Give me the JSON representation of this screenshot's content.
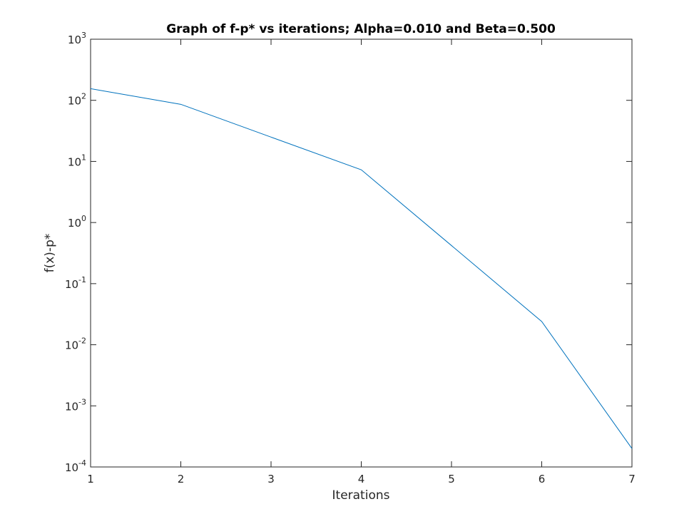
{
  "chart_data": {
    "type": "line",
    "title": "Graph of f-p* vs iterations; Alpha=0.010 and Beta=0.500",
    "xlabel": "Iterations",
    "ylabel": "f(x)-p*",
    "xlim": [
      1,
      7
    ],
    "ylim": [
      0.0001,
      1000
    ],
    "yscale": "log",
    "grid": false,
    "legend": "none",
    "x_ticks": [
      1,
      2,
      3,
      4,
      5,
      6,
      7
    ],
    "y_ticks": [
      {
        "value": 0.0001,
        "base": "10",
        "exp": "-4"
      },
      {
        "value": 0.001,
        "base": "10",
        "exp": "-3"
      },
      {
        "value": 0.01,
        "base": "10",
        "exp": "-2"
      },
      {
        "value": 0.1,
        "base": "10",
        "exp": "-1"
      },
      {
        "value": 1,
        "base": "10",
        "exp": "0"
      },
      {
        "value": 10,
        "base": "10",
        "exp": "1"
      },
      {
        "value": 100,
        "base": "10",
        "exp": "2"
      },
      {
        "value": 1000,
        "base": "10",
        "exp": "3"
      }
    ],
    "series": [
      {
        "color": "#0072bd",
        "x": [
          1,
          2,
          3,
          4,
          5,
          6,
          7
        ],
        "y": [
          155,
          86,
          25,
          7.3,
          0.42,
          0.024,
          0.0002
        ]
      }
    ]
  }
}
